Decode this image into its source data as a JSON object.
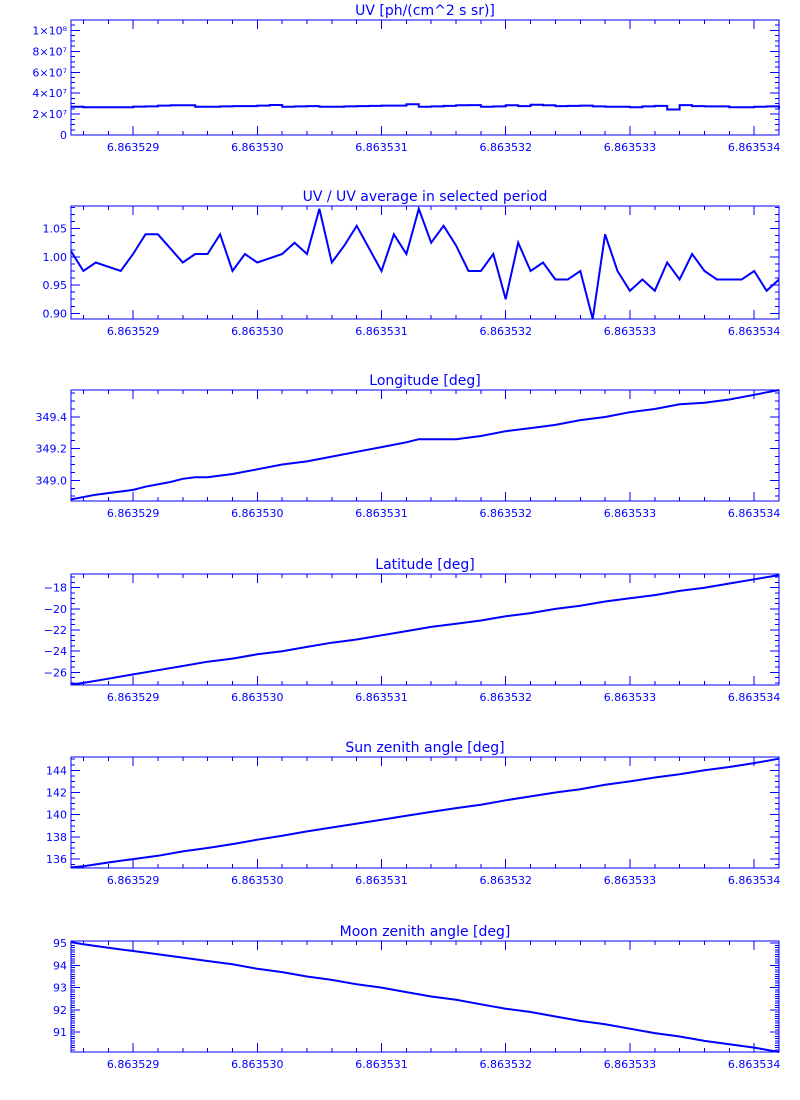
{
  "chart_data": [
    {
      "type": "line",
      "title": "UV [ph/(cm^2 s sr)]",
      "xlim": [
        6.8635285,
        6.8635342
      ],
      "xticks": [
        "6.863529",
        "6.863530",
        "6.863531",
        "6.863532",
        "6.863533",
        "6.863534"
      ],
      "ylim": [
        0,
        110000000
      ],
      "yticks": [
        {
          "value": 0,
          "label": "0"
        },
        {
          "value": 20000000,
          "label": "2×10⁷"
        },
        {
          "value": 40000000,
          "label": "4×10⁷"
        },
        {
          "value": 60000000,
          "label": "6×10⁷"
        },
        {
          "value": 80000000,
          "label": "8×10⁷"
        },
        {
          "value": 100000000,
          "label": "1×10⁸"
        }
      ],
      "minor_per_major": 4,
      "series": [
        {
          "style": "step",
          "x": [
            6.8635285,
            6.8635286,
            6.8635287,
            6.8635288,
            6.8635289,
            6.863529,
            6.8635291,
            6.8635292,
            6.8635293,
            6.8635294,
            6.8635295,
            6.8635296,
            6.8635297,
            6.8635298,
            6.8635299,
            6.86353,
            6.8635301,
            6.8635302,
            6.8635303,
            6.8635304,
            6.8635305,
            6.8635306,
            6.8635307,
            6.8635308,
            6.8635309,
            6.863531,
            6.8635311,
            6.8635312,
            6.8635313,
            6.8635314,
            6.8635315,
            6.8635316,
            6.8635317,
            6.8635318,
            6.8635319,
            6.863532,
            6.8635321,
            6.8635322,
            6.8635323,
            6.8635324,
            6.8635325,
            6.8635326,
            6.8635327,
            6.8635328,
            6.8635329,
            6.863533,
            6.8635331,
            6.8635332,
            6.8635333,
            6.8635334,
            6.8635335,
            6.8635336,
            6.8635337,
            6.8635338,
            6.8635339,
            6.863534,
            6.8635341,
            6.8635342
          ],
          "y": [
            27000000,
            26600000,
            26600000,
            26600000,
            26600000,
            27200000,
            27400000,
            28100000,
            28400000,
            28400000,
            27000000,
            27000000,
            27400000,
            27600000,
            27600000,
            28100000,
            28700000,
            27000000,
            27400000,
            27600000,
            27000000,
            27000000,
            27400000,
            27600000,
            27800000,
            28100000,
            28100000,
            29500000,
            27000000,
            27400000,
            27800000,
            28400000,
            28600000,
            27000000,
            27400000,
            28400000,
            27600000,
            29000000,
            28400000,
            27600000,
            27800000,
            28100000,
            27400000,
            27000000,
            27000000,
            26600000,
            27400000,
            27800000,
            24400000,
            28600000,
            27600000,
            27400000,
            27400000,
            26600000,
            26600000,
            27000000,
            27400000,
            25100000
          ]
        }
      ]
    },
    {
      "type": "line",
      "title": "UV / UV average in selected period",
      "xlim": [
        6.8635285,
        6.8635342
      ],
      "xticks": [
        "6.863529",
        "6.863530",
        "6.863531",
        "6.863532",
        "6.863533",
        "6.863534"
      ],
      "ylim": [
        0.89,
        1.09
      ],
      "yticks": [
        {
          "value": 0.9,
          "label": "0.90"
        },
        {
          "value": 0.95,
          "label": "0.95"
        },
        {
          "value": 1.0,
          "label": "1.00"
        },
        {
          "value": 1.05,
          "label": "1.05"
        }
      ],
      "minor_per_major": 4,
      "series": [
        {
          "style": "line",
          "x": [
            6.8635285,
            6.8635286,
            6.8635287,
            6.8635289,
            6.863529,
            6.8635291,
            6.8635292,
            6.8635294,
            6.8635295,
            6.8635296,
            6.8635297,
            6.8635298,
            6.8635299,
            6.86353,
            6.8635302,
            6.8635303,
            6.8635304,
            6.8635305,
            6.8635306,
            6.8635307,
            6.8635308,
            6.863531,
            6.8635311,
            6.8635312,
            6.8635313,
            6.8635314,
            6.8635315,
            6.8635316,
            6.8635317,
            6.8635318,
            6.8635319,
            6.863532,
            6.8635321,
            6.8635322,
            6.8635323,
            6.8635324,
            6.8635325,
            6.8635326,
            6.8635327,
            6.8635328,
            6.8635329,
            6.863533,
            6.8635331,
            6.8635332,
            6.8635333,
            6.8635334,
            6.8635335,
            6.8635336,
            6.8635337,
            6.8635338,
            6.8635339,
            6.863534,
            6.8635341,
            6.8635342
          ],
          "y": [
            1.01,
            0.975,
            0.99,
            0.975,
            1.005,
            1.04,
            1.04,
            0.99,
            1.005,
            1.005,
            1.04,
            0.975,
            1.005,
            0.99,
            1.005,
            1.025,
            1.005,
            1.085,
            0.99,
            1.02,
            1.055,
            0.975,
            1.04,
            1.005,
            1.085,
            1.025,
            1.055,
            1.02,
            0.975,
            0.975,
            1.005,
            0.925,
            1.025,
            0.975,
            0.99,
            0.96,
            0.96,
            0.975,
            0.89,
            1.04,
            0.975,
            0.94,
            0.96,
            0.94,
            0.99,
            0.96,
            1.005,
            0.975,
            0.96,
            0.96,
            0.96,
            0.975,
            0.94,
            0.96
          ]
        }
      ]
    },
    {
      "type": "line",
      "title": "Longitude [deg]",
      "xlim": [
        6.8635285,
        6.8635342
      ],
      "xticks": [
        "6.863529",
        "6.863530",
        "6.863531",
        "6.863532",
        "6.863533",
        "6.863534"
      ],
      "ylim": [
        348.87,
        349.57
      ],
      "yticks": [
        {
          "value": 349.0,
          "label": "349.0"
        },
        {
          "value": 349.2,
          "label": "349.2"
        },
        {
          "value": 349.4,
          "label": "349.4"
        }
      ],
      "minor_per_major": 4,
      "series": [
        {
          "style": "line",
          "x": [
            6.8635285,
            6.8635287,
            6.8635289,
            6.863529,
            6.8635291,
            6.8635293,
            6.8635294,
            6.8635295,
            6.8635296,
            6.8635298,
            6.86353,
            6.8635302,
            6.8635304,
            6.8635306,
            6.8635308,
            6.863531,
            6.8635312,
            6.8635313,
            6.8635315,
            6.8635316,
            6.8635318,
            6.863532,
            6.8635322,
            6.8635324,
            6.8635326,
            6.8635328,
            6.863533,
            6.8635332,
            6.8635334,
            6.8635336,
            6.8635338,
            6.863534,
            6.8635342
          ],
          "y": [
            348.88,
            348.91,
            348.93,
            348.94,
            348.96,
            348.99,
            349.01,
            349.02,
            349.02,
            349.04,
            349.07,
            349.1,
            349.12,
            349.15,
            349.18,
            349.21,
            349.24,
            349.26,
            349.26,
            349.26,
            349.28,
            349.31,
            349.33,
            349.35,
            349.38,
            349.4,
            349.43,
            349.45,
            349.48,
            349.49,
            349.51,
            349.54,
            349.57
          ]
        }
      ]
    },
    {
      "type": "line",
      "title": "Latitude [deg]",
      "xlim": [
        6.8635285,
        6.8635342
      ],
      "xticks": [
        "6.863529",
        "6.863530",
        "6.863531",
        "6.863532",
        "6.863533",
        "6.863534"
      ],
      "ylim": [
        -27.2,
        -16.7
      ],
      "yticks": [
        {
          "value": -26,
          "label": "−26"
        },
        {
          "value": -24,
          "label": "−24"
        },
        {
          "value": -22,
          "label": "−22"
        },
        {
          "value": -20,
          "label": "−20"
        },
        {
          "value": -18,
          "label": "−18"
        }
      ],
      "minor_per_major": 4,
      "series": [
        {
          "style": "line",
          "x": [
            6.8635285,
            6.8635286,
            6.8635288,
            6.863529,
            6.8635292,
            6.8635294,
            6.8635296,
            6.8635298,
            6.86353,
            6.8635302,
            6.8635304,
            6.8635306,
            6.8635308,
            6.863531,
            6.8635312,
            6.8635314,
            6.8635316,
            6.8635318,
            6.863532,
            6.8635322,
            6.8635324,
            6.8635326,
            6.8635328,
            6.863533,
            6.8635332,
            6.8635334,
            6.8635336,
            6.8635338,
            6.863534,
            6.8635342
          ],
          "y": [
            -27.15,
            -27.0,
            -26.6,
            -26.2,
            -25.8,
            -25.4,
            -25.0,
            -24.7,
            -24.3,
            -24.0,
            -23.6,
            -23.2,
            -22.9,
            -22.5,
            -22.1,
            -21.7,
            -21.4,
            -21.1,
            -20.7,
            -20.4,
            -20.0,
            -19.7,
            -19.3,
            -19.0,
            -18.7,
            -18.3,
            -18.0,
            -17.6,
            -17.2,
            -16.8
          ]
        }
      ]
    },
    {
      "type": "line",
      "title": "Sun zenith angle [deg]",
      "xlim": [
        6.8635285,
        6.8635342
      ],
      "xticks": [
        "6.863529",
        "6.863530",
        "6.863531",
        "6.863532",
        "6.863533",
        "6.863534"
      ],
      "ylim": [
        135.2,
        145.2
      ],
      "yticks": [
        {
          "value": 136,
          "label": "136"
        },
        {
          "value": 138,
          "label": "138"
        },
        {
          "value": 140,
          "label": "140"
        },
        {
          "value": 142,
          "label": "142"
        },
        {
          "value": 144,
          "label": "144"
        }
      ],
      "minor_per_major": 4,
      "series": [
        {
          "style": "line",
          "x": [
            6.8635285,
            6.8635286,
            6.8635288,
            6.863529,
            6.8635292,
            6.8635294,
            6.8635296,
            6.8635298,
            6.86353,
            6.8635302,
            6.8635304,
            6.8635306,
            6.8635308,
            6.863531,
            6.8635312,
            6.8635314,
            6.8635316,
            6.8635318,
            6.863532,
            6.8635322,
            6.8635324,
            6.8635326,
            6.8635328,
            6.863533,
            6.8635332,
            6.8635334,
            6.8635336,
            6.8635338,
            6.863534,
            6.8635342
          ],
          "y": [
            135.25,
            135.35,
            135.7,
            136.0,
            136.3,
            136.7,
            137.0,
            137.35,
            137.75,
            138.1,
            138.5,
            138.85,
            139.2,
            139.55,
            139.9,
            140.25,
            140.6,
            140.9,
            141.3,
            141.65,
            142.0,
            142.3,
            142.7,
            143.0,
            143.35,
            143.65,
            144.0,
            144.3,
            144.65,
            145.05
          ]
        }
      ]
    },
    {
      "type": "line",
      "title": "Moon zenith angle [deg]",
      "xlim": [
        6.8635285,
        6.8635342
      ],
      "xticks": [
        "6.863529",
        "6.863530",
        "6.863531",
        "6.863532",
        "6.863533",
        "6.863534"
      ],
      "ylim": [
        90.1,
        95.1
      ],
      "yticks": [
        {
          "value": 91,
          "label": "91"
        },
        {
          "value": 92,
          "label": "92"
        },
        {
          "value": 93,
          "label": "93"
        },
        {
          "value": 94,
          "label": "94"
        },
        {
          "value": 95,
          "label": "95"
        }
      ],
      "minor_per_major": 10,
      "series": [
        {
          "style": "line",
          "x": [
            6.8635285,
            6.8635286,
            6.8635288,
            6.863529,
            6.8635292,
            6.8635294,
            6.8635296,
            6.8635298,
            6.86353,
            6.8635302,
            6.8635304,
            6.8635306,
            6.8635308,
            6.863531,
            6.8635312,
            6.8635314,
            6.8635316,
            6.8635318,
            6.863532,
            6.8635322,
            6.8635324,
            6.8635326,
            6.8635328,
            6.863533,
            6.8635332,
            6.8635334,
            6.8635336,
            6.8635338,
            6.863534,
            6.8635342
          ],
          "y": [
            95.05,
            94.95,
            94.8,
            94.65,
            94.5,
            94.35,
            94.2,
            94.05,
            93.85,
            93.7,
            93.5,
            93.35,
            93.15,
            93.0,
            92.8,
            92.6,
            92.45,
            92.25,
            92.05,
            91.9,
            91.7,
            91.5,
            91.35,
            91.15,
            90.95,
            90.8,
            90.6,
            90.45,
            90.3,
            90.1
          ]
        }
      ]
    }
  ]
}
